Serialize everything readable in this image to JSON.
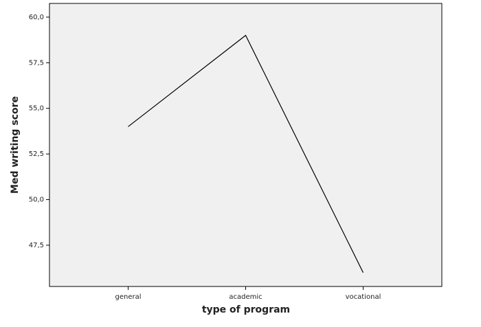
{
  "chart_data": {
    "type": "line",
    "x_label": "type of program",
    "y_label": "Med writing score",
    "categories": [
      "general",
      "academic",
      "vocational"
    ],
    "values": [
      54,
      59,
      46
    ],
    "color": "#000000",
    "ylim": [
      45.24,
      60.75
    ],
    "yticks": [
      {
        "value": 47.5,
        "label": "47,5"
      },
      {
        "value": 50,
        "label": "50,0"
      },
      {
        "value": 52.5,
        "label": "52,5"
      },
      {
        "value": 55,
        "label": "55,0"
      },
      {
        "value": 57.5,
        "label": "57,5"
      },
      {
        "value": 60,
        "label": "60,0"
      }
    ],
    "background": "#f0f0f0"
  }
}
